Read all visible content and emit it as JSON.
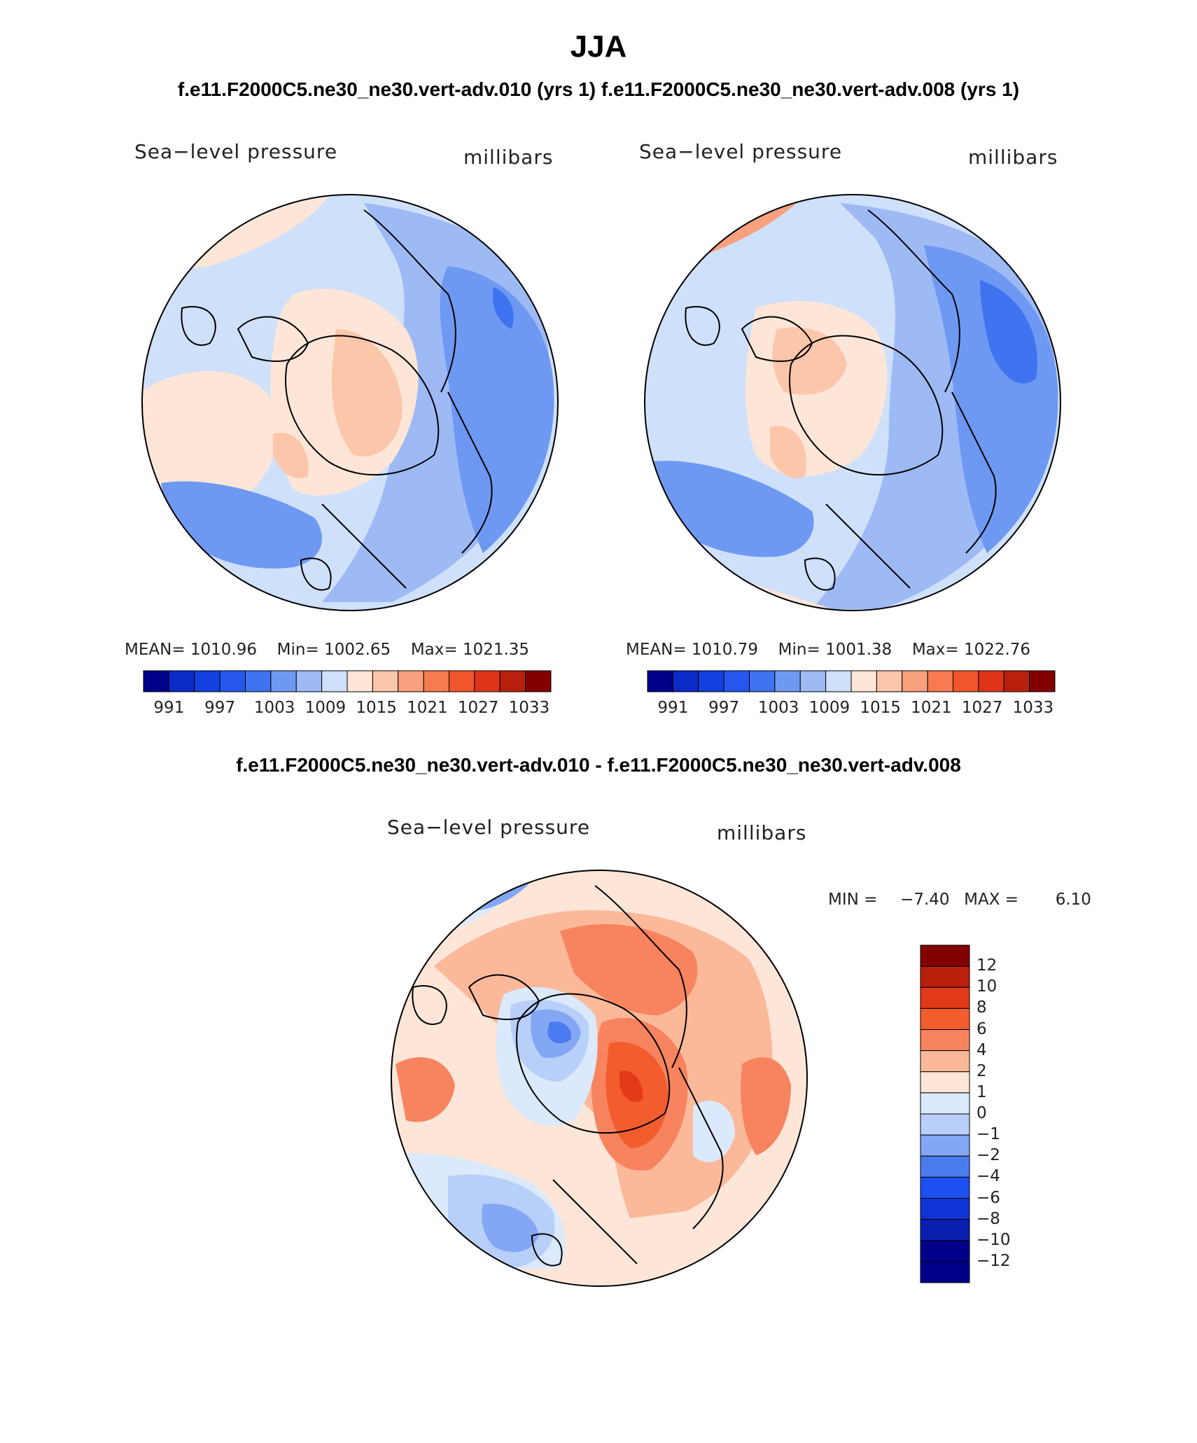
{
  "page": {
    "season": "JJA",
    "top_caption": "f.e11.F2000C5.ne30_ne30.vert-adv.010 (yrs 1) f.e11.F2000C5.ne30_ne30.vert-adv.008 (yrs 1)",
    "diff_caption": "f.e11.F2000C5.ne30_ne30.vert-adv.010 - f.e11.F2000C5.ne30_ne30.vert-adv.008"
  },
  "palette": {
    "abs": [
      "#00008b",
      "#0a2bc7",
      "#1340e0",
      "#2557ef",
      "#3f73ef",
      "#6e99f2",
      "#9ebaf5",
      "#cfe0fa",
      "#fde6d8",
      "#fcc6ab",
      "#f9a07e",
      "#f77a50",
      "#f2562c",
      "#e0341a",
      "#b8200d",
      "#830000"
    ],
    "diff": [
      "#00008b",
      "#0a1fb0",
      "#1033d6",
      "#1e4ff0",
      "#4a7cf0",
      "#83a7f4",
      "#b8cff9",
      "#dbe9fc",
      "#fde6d8",
      "#fbb99a",
      "#f7845e",
      "#f35d2e",
      "#e23a18",
      "#b8200d",
      "#830000"
    ]
  },
  "chart_data": [
    {
      "type": "heatmap",
      "id": "left",
      "projection": "north-polar-stereographic",
      "title": "Sea−level pressure",
      "units": "millibars",
      "stats": {
        "mean_label": "MEAN=",
        "mean": "1010.96",
        "min_label": "Min=",
        "min": "1002.65",
        "max_label": "Max=",
        "max": "1021.35"
      },
      "mean": 1010.96,
      "min": 1002.65,
      "max": 1021.35,
      "levels": [
        991,
        994,
        997,
        1000,
        1003,
        1006,
        1009,
        1012,
        1015,
        1018,
        1021,
        1024,
        1027,
        1030,
        1033
      ],
      "tick_labels": [
        "991",
        "997",
        "1003",
        "1009",
        "1015",
        "1021",
        "1027",
        "1033"
      ]
    },
    {
      "type": "heatmap",
      "id": "right",
      "projection": "north-polar-stereographic",
      "title": "Sea−level pressure",
      "units": "millibars",
      "stats": {
        "mean_label": "MEAN=",
        "mean": "1010.79",
        "min_label": "Min=",
        "min": "1001.38",
        "max_label": "Max=",
        "max": "1022.76"
      },
      "mean": 1010.79,
      "min": 1001.38,
      "max": 1022.76,
      "levels": [
        991,
        994,
        997,
        1000,
        1003,
        1006,
        1009,
        1012,
        1015,
        1018,
        1021,
        1024,
        1027,
        1030,
        1033
      ],
      "tick_labels": [
        "991",
        "997",
        "1003",
        "1009",
        "1015",
        "1021",
        "1027",
        "1033"
      ]
    },
    {
      "type": "heatmap",
      "id": "diff",
      "projection": "north-polar-stereographic",
      "title": "Sea−level pressure",
      "units": "millibars",
      "stats": {
        "min_label": "MIN =",
        "min": "−7.40",
        "max_label": "MAX =",
        "max": "6.10"
      },
      "min": -7.4,
      "max": 6.1,
      "levels": [
        -12,
        -10,
        -8,
        -6,
        -4,
        -2,
        -1,
        0,
        1,
        2,
        4,
        6,
        8,
        10,
        12
      ],
      "tick_labels": [
        "12",
        "10",
        "8",
        "6",
        "4",
        "2",
        "1",
        "0",
        "−1",
        "−2",
        "−4",
        "−6",
        "−8",
        "−10",
        "−12"
      ]
    }
  ]
}
